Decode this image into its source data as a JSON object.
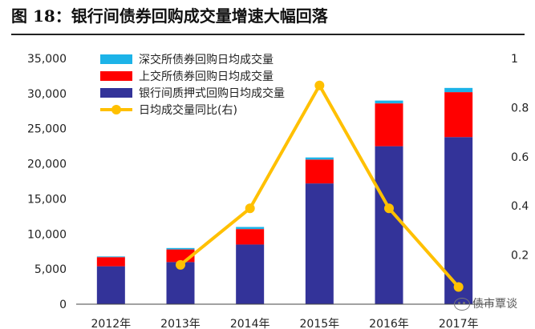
{
  "figure": {
    "title": "图 18：银行间债券回购成交量增速大幅回落"
  },
  "watermark": {
    "text": "债市覃谈",
    "icon": "wechat-icon"
  },
  "chart_data": {
    "type": "bar",
    "stacked": true,
    "categories": [
      "2012年",
      "2013年",
      "2014年",
      "2015年",
      "2016年",
      "2017年"
    ],
    "series": [
      {
        "name": "银行间质押式回购日均成交量",
        "color": "#333399",
        "axis": "left",
        "values": [
          5400,
          6000,
          8500,
          17200,
          22500,
          23800
        ]
      },
      {
        "name": "上交所债券回购日均成交量",
        "color": "#ff0000",
        "axis": "left",
        "values": [
          1300,
          1800,
          2200,
          3400,
          6100,
          6400
        ]
      },
      {
        "name": "深交所债券回购日均成交量",
        "color": "#1cb3e8",
        "axis": "left",
        "values": [
          100,
          200,
          300,
          300,
          400,
          600
        ]
      },
      {
        "name": "日均成交量同比(右)",
        "type": "line",
        "color": "#ffc000",
        "axis": "right",
        "values": [
          null,
          0.16,
          0.39,
          0.89,
          0.39,
          0.07
        ]
      }
    ],
    "y_left": {
      "min": 0,
      "max": 35000,
      "ticks": [
        "0",
        "5,000",
        "10,000",
        "15,000",
        "20,000",
        "25,000",
        "30,000",
        "35,000"
      ]
    },
    "y_right": {
      "min": 0,
      "max": 1,
      "ticks": [
        "0.2",
        "0.4",
        "0.6",
        "0.8",
        "1"
      ]
    },
    "legend_position": "top-left",
    "grid": false
  }
}
